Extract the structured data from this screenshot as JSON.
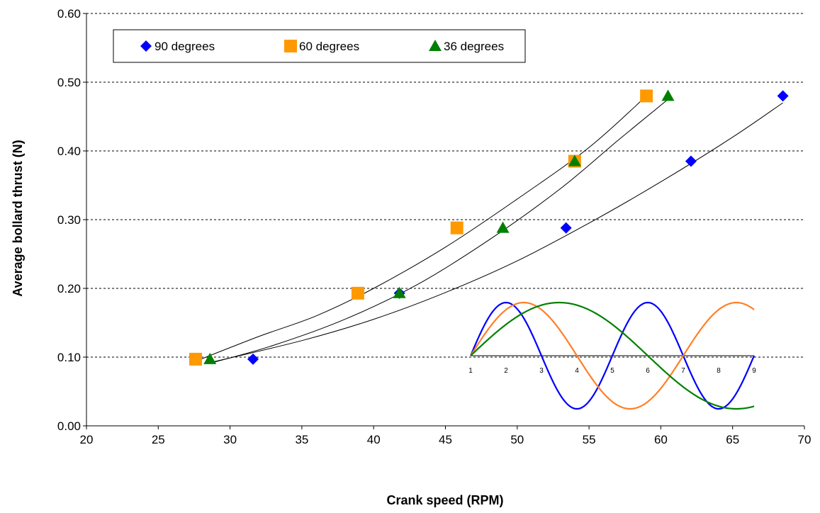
{
  "chart_data": {
    "type": "scatter",
    "title": "",
    "xlabel": "Crank speed (RPM)",
    "ylabel": "Average bollard thrust (N)",
    "xlim": [
      20,
      70
    ],
    "ylim": [
      0,
      0.6
    ],
    "xticks": [
      "20",
      "25",
      "30",
      "35",
      "40",
      "45",
      "50",
      "55",
      "60",
      "65",
      "70"
    ],
    "yticks": [
      "0.00",
      "0.10",
      "0.20",
      "0.30",
      "0.40",
      "0.50",
      "0.60"
    ],
    "grid": "horizontal dashed",
    "legend_placement": "top-left",
    "series": [
      {
        "name": "90 degrees",
        "marker": "diamond",
        "color": "#0000ff",
        "points": [
          [
            31.6,
            0.097
          ],
          [
            41.8,
            0.193
          ],
          [
            53.4,
            0.288
          ],
          [
            62.1,
            0.385
          ],
          [
            68.5,
            0.48
          ]
        ],
        "trend": [
          [
            28.6,
            0.092
          ],
          [
            35,
            0.124
          ],
          [
            40,
            0.155
          ],
          [
            45,
            0.194
          ],
          [
            50,
            0.24
          ],
          [
            55,
            0.295
          ],
          [
            60,
            0.355
          ],
          [
            65,
            0.42
          ],
          [
            68.5,
            0.47
          ]
        ]
      },
      {
        "name": "60 degrees",
        "marker": "square",
        "color": "#ff9900",
        "points": [
          [
            27.6,
            0.097
          ],
          [
            38.9,
            0.193
          ],
          [
            45.8,
            0.288
          ],
          [
            54.0,
            0.385
          ],
          [
            59.0,
            0.48
          ]
        ],
        "trend": [
          [
            27.6,
            0.094
          ],
          [
            32,
            0.13
          ],
          [
            36,
            0.16
          ],
          [
            40,
            0.2
          ],
          [
            45,
            0.26
          ],
          [
            50,
            0.33
          ],
          [
            55,
            0.405
          ],
          [
            59,
            0.48
          ]
        ]
      },
      {
        "name": "36 degrees",
        "marker": "triangle",
        "color": "#008000",
        "points": [
          [
            28.6,
            0.097
          ],
          [
            41.8,
            0.193
          ],
          [
            49.0,
            0.288
          ],
          [
            54.0,
            0.385
          ],
          [
            60.5,
            0.48
          ]
        ],
        "trend": [
          [
            28.6,
            0.091
          ],
          [
            33,
            0.117
          ],
          [
            38,
            0.155
          ],
          [
            43,
            0.205
          ],
          [
            48,
            0.27
          ],
          [
            53,
            0.345
          ],
          [
            57,
            0.415
          ],
          [
            60.5,
            0.475
          ]
        ]
      }
    ],
    "inset": {
      "type": "line",
      "x_ticks": [
        "1",
        "2",
        "3",
        "4",
        "5",
        "6",
        "7",
        "8",
        "9"
      ],
      "waves": [
        {
          "color": "#0000ff",
          "period_ticks": 4
        },
        {
          "color": "#ff7f27",
          "period_ticks": 6
        },
        {
          "color": "#008000",
          "period_ticks": 10
        }
      ]
    }
  }
}
